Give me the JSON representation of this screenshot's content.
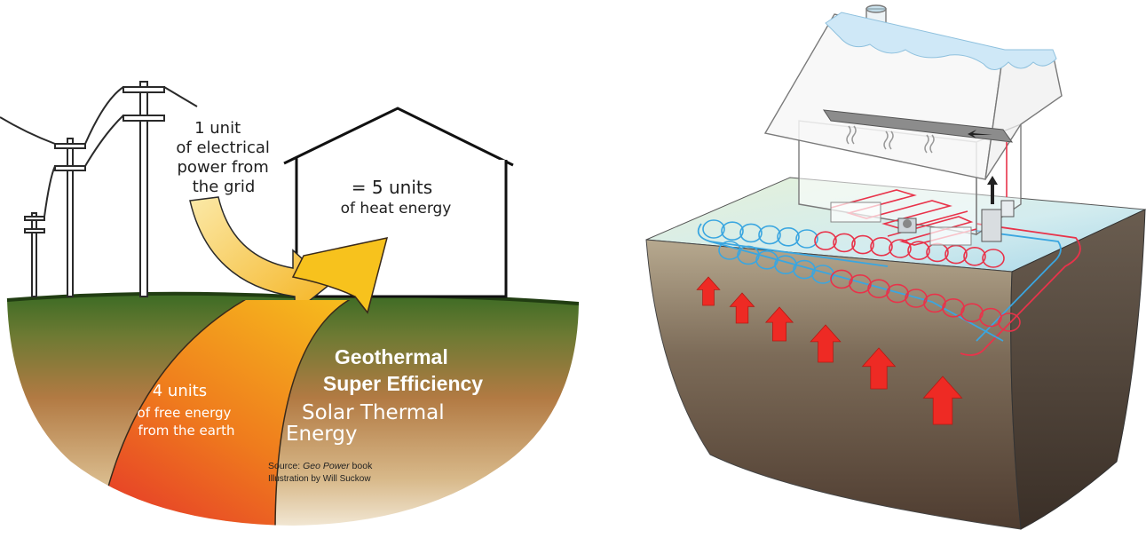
{
  "left_panel": {
    "grid_label": [
      "1 unit",
      "of electrical",
      "power from",
      "the grid"
    ],
    "house_label": [
      "= 5 units",
      "of heat energy"
    ],
    "earth_label": [
      "4 units",
      "of free energy",
      "from the earth"
    ],
    "title": [
      "Geothermal",
      "Super Efficiency"
    ],
    "solar_label": [
      "Solar Thermal",
      "Energy"
    ],
    "source_prefix": "Source: ",
    "source_book": "Geo Power",
    "source_suffix": " book",
    "credit": "Illustration by Will Suckow"
  },
  "colors": {
    "ground_top": "#3c6b24",
    "ground_bottom": "#d9c8a6",
    "arrow_yellow": "#f7c21d",
    "arrow_orange": "#ef7b1d",
    "arrow_red": "#e4312b",
    "heat_arrow": "#ee2a24",
    "loop_cold": "#3aa6e0",
    "loop_hot": "#e8334a",
    "snow": "#cfe8f7"
  }
}
